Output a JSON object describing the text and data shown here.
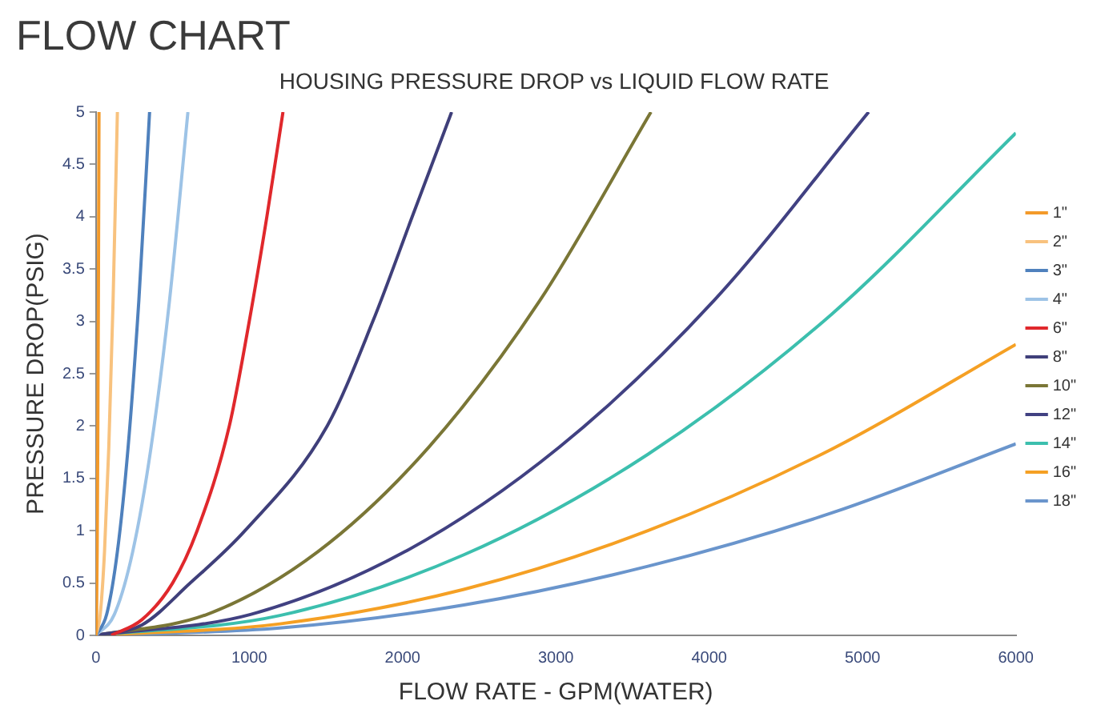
{
  "chart_data": {
    "type": "line",
    "title": "FLOW CHART",
    "subtitle": "HOUSING PRESSURE DROP vs LIQUID FLOW RATE",
    "xlabel": "FLOW RATE - GPM(WATER)",
    "ylabel": "PRESSURE DROP(PSIG)",
    "xlim": [
      0,
      6000
    ],
    "ylim": [
      0,
      5
    ],
    "xticks": [
      0,
      1000,
      2000,
      3000,
      4000,
      5000,
      6000
    ],
    "yticks": [
      0,
      0.5,
      1,
      1.5,
      2,
      2.5,
      3,
      3.5,
      4,
      4.5,
      5
    ],
    "grid": false,
    "legend": "right",
    "marker": "none",
    "line_style": "solid",
    "series": [
      {
        "name": "1\"",
        "color": "#f39a2a",
        "x": [
          0,
          4,
          8,
          12,
          16,
          20
        ],
        "values": [
          0,
          0.2,
          0.8,
          1.8,
          3.2,
          5
        ]
      },
      {
        "name": "2\"",
        "color": "#f8c27e",
        "x": [
          0,
          28,
          56,
          84,
          112,
          140
        ],
        "values": [
          0,
          0.2,
          0.8,
          1.8,
          3.2,
          5
        ]
      },
      {
        "name": "3\"",
        "color": "#4f81bd",
        "x": [
          0,
          70,
          140,
          210,
          280,
          350
        ],
        "values": [
          0,
          0.2,
          0.8,
          1.8,
          3.2,
          5
        ]
      },
      {
        "name": "4\"",
        "color": "#9dc3e6",
        "x": [
          0,
          120,
          240,
          360,
          480,
          600
        ],
        "values": [
          0,
          0.2,
          0.8,
          1.8,
          3.2,
          5
        ]
      },
      {
        "name": "6\"",
        "color": "#e0282c",
        "x": [
          100,
          300,
          500,
          660,
          870,
          1000,
          1115,
          1220
        ],
        "values": [
          0,
          0.15,
          0.5,
          1,
          2,
          3,
          4,
          5
        ]
      },
      {
        "name": "8\"",
        "color": "#3f3f7a",
        "x": [
          0,
          300,
          615,
          972,
          1508,
          1806,
          2063,
          2320
        ],
        "values": [
          0,
          0.1,
          0.5,
          1,
          2,
          3,
          4,
          5
        ]
      },
      {
        "name": "10\"",
        "color": "#7a7636",
        "x": [
          0,
          724,
          1448,
          2172,
          2896,
          3620
        ],
        "values": [
          0,
          0.2,
          0.8,
          1.8,
          3.2,
          5
        ]
      },
      {
        "name": "12\"",
        "color": "#414182",
        "x": [
          0,
          1008,
          2016,
          3024,
          4032,
          5040
        ],
        "values": [
          0,
          0.2,
          0.8,
          1.8,
          3.2,
          5
        ]
      },
      {
        "name": "14\"",
        "color": "#3cbfae",
        "x": [
          0,
          1200,
          2400,
          3600,
          4800,
          6000
        ],
        "values": [
          0,
          0.19,
          0.77,
          1.73,
          3.07,
          4.8
        ]
      },
      {
        "name": "16\"",
        "color": "#f5a024",
        "x": [
          0,
          1200,
          2400,
          3600,
          4800,
          6000
        ],
        "values": [
          0,
          0.11,
          0.44,
          1,
          1.78,
          2.78
        ]
      },
      {
        "name": "18\"",
        "color": "#6a95cc",
        "x": [
          0,
          1200,
          2400,
          3600,
          4800,
          6000
        ],
        "values": [
          0,
          0.07,
          0.29,
          0.66,
          1.17,
          1.83
        ]
      }
    ]
  }
}
